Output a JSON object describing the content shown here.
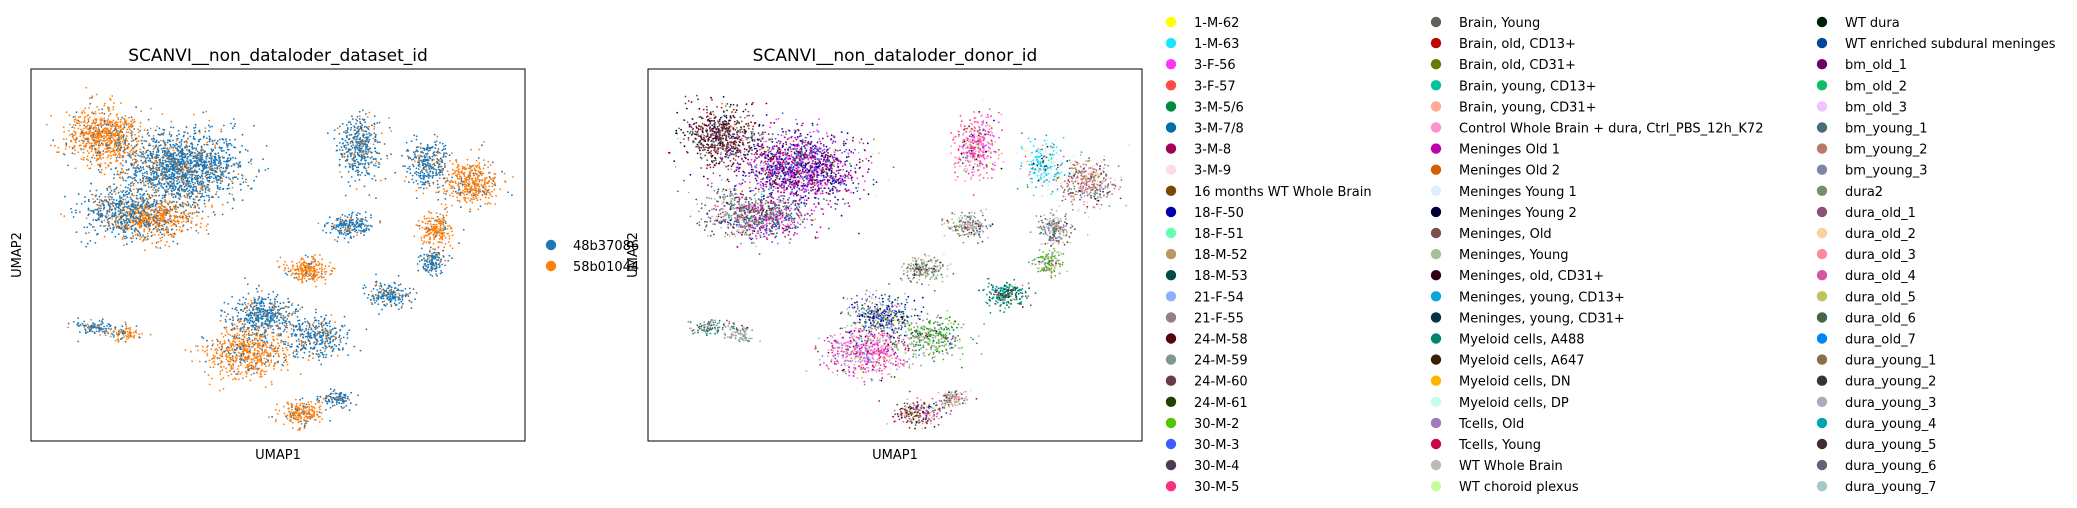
{
  "colors": {
    "series_a": "#1f77b4",
    "series_b": "#ff7f0e"
  },
  "chart_data": [
    {
      "type": "scatter",
      "title": "SCANVI__non_dataloder_dataset_id",
      "xlabel": "UMAP1",
      "ylabel": "UMAP2",
      "grid": false,
      "ticks": false,
      "legend_placement": "right",
      "legend": [
        {
          "name": "48b37086",
          "color": "#1f77b4"
        },
        {
          "name": "58b01044",
          "color": "#ff7f0e"
        }
      ],
      "xlim": [
        0,
        100
      ],
      "ylim": [
        0,
        100
      ],
      "clusters": [
        {
          "x": 14,
          "y": 83,
          "sx": 7,
          "sy": 7,
          "n": 800,
          "series": 1
        },
        {
          "x": 30,
          "y": 74,
          "sx": 11,
          "sy": 9,
          "n": 1700,
          "series": 0
        },
        {
          "x": 24,
          "y": 60,
          "sx": 8,
          "sy": 5,
          "n": 600,
          "series": 1
        },
        {
          "x": 18,
          "y": 62,
          "sx": 8,
          "sy": 6,
          "n": 500,
          "series": 0
        },
        {
          "x": 56,
          "y": 46,
          "sx": 4,
          "sy": 3,
          "n": 260,
          "series": 1
        },
        {
          "x": 67,
          "y": 80,
          "sx": 4,
          "sy": 8,
          "n": 420,
          "series": 0
        },
        {
          "x": 81,
          "y": 75,
          "sx": 4,
          "sy": 6,
          "n": 320,
          "series": 0
        },
        {
          "x": 90,
          "y": 70,
          "sx": 5,
          "sy": 6,
          "n": 420,
          "series": 1
        },
        {
          "x": 83,
          "y": 57,
          "sx": 3,
          "sy": 4,
          "n": 220,
          "series": 1
        },
        {
          "x": 82,
          "y": 48,
          "sx": 2.5,
          "sy": 3,
          "n": 150,
          "series": 0
        },
        {
          "x": 65,
          "y": 58,
          "sx": 4,
          "sy": 3,
          "n": 220,
          "series": 0
        },
        {
          "x": 73,
          "y": 39,
          "sx": 4,
          "sy": 3,
          "n": 200,
          "series": 0
        },
        {
          "x": 44,
          "y": 23,
          "sx": 8,
          "sy": 6,
          "n": 650,
          "series": 1
        },
        {
          "x": 47,
          "y": 33,
          "sx": 6,
          "sy": 5,
          "n": 450,
          "series": 0
        },
        {
          "x": 58,
          "y": 27,
          "sx": 6,
          "sy": 5,
          "n": 350,
          "series": 0
        },
        {
          "x": 55,
          "y": 6,
          "sx": 4,
          "sy": 3,
          "n": 220,
          "series": 1
        },
        {
          "x": 62,
          "y": 10,
          "sx": 3,
          "sy": 2,
          "n": 120,
          "series": 0
        },
        {
          "x": 12,
          "y": 30,
          "sx": 4,
          "sy": 2,
          "n": 110,
          "series": 0
        },
        {
          "x": 18,
          "y": 28,
          "sx": 3,
          "sy": 2,
          "n": 90,
          "series": 1
        }
      ]
    },
    {
      "type": "scatter",
      "title": "SCANVI__non_dataloder_donor_id",
      "xlabel": "UMAP1",
      "ylabel": "UMAP2",
      "grid": false,
      "ticks": false,
      "legend_placement": "right",
      "legend_columns": 3,
      "legend": [
        {
          "name": "1-M-62",
          "color": "#ffff00"
        },
        {
          "name": "1-M-63",
          "color": "#1ce6ff"
        },
        {
          "name": "3-F-56",
          "color": "#ff34ff"
        },
        {
          "name": "3-F-57",
          "color": "#ff4a46"
        },
        {
          "name": "3-M-5/6",
          "color": "#008941"
        },
        {
          "name": "3-M-7/8",
          "color": "#006fa6"
        },
        {
          "name": "3-M-8",
          "color": "#a30059"
        },
        {
          "name": "3-M-9",
          "color": "#ffdbe5"
        },
        {
          "name": "16 months WT Whole Brain",
          "color": "#7a4900"
        },
        {
          "name": "18-F-50",
          "color": "#0000a6"
        },
        {
          "name": "18-F-51",
          "color": "#63ffac"
        },
        {
          "name": "18-M-52",
          "color": "#b79762"
        },
        {
          "name": "18-M-53",
          "color": "#004d43"
        },
        {
          "name": "21-F-54",
          "color": "#8fb0ff"
        },
        {
          "name": "21-F-55",
          "color": "#997d87"
        },
        {
          "name": "24-M-58",
          "color": "#5a0007"
        },
        {
          "name": "24-M-59",
          "color": "#809693"
        },
        {
          "name": "24-M-60",
          "color": "#6a3a4c"
        },
        {
          "name": "24-M-61",
          "color": "#1b4400"
        },
        {
          "name": "30-M-2",
          "color": "#4fc601"
        },
        {
          "name": "30-M-3",
          "color": "#3b5dff"
        },
        {
          "name": "30-M-4",
          "color": "#4a3b53"
        },
        {
          "name": "30-M-5",
          "color": "#ff2f80"
        },
        {
          "name": "Brain, Young",
          "color": "#61615a"
        },
        {
          "name": "Brain, old, CD13+",
          "color": "#ba0900"
        },
        {
          "name": "Brain, old, CD31+",
          "color": "#6b7900"
        },
        {
          "name": "Brain, young, CD13+",
          "color": "#00c2a0"
        },
        {
          "name": "Brain, young, CD31+",
          "color": "#ffaa92"
        },
        {
          "name": "Control Whole Brain + dura, Ctrl_PBS_12h_K72",
          "color": "#ff90c9"
        },
        {
          "name": "Meninges Old 1",
          "color": "#b903aa"
        },
        {
          "name": "Meninges Old 2",
          "color": "#d16100"
        },
        {
          "name": "Meninges Young 1",
          "color": "#ddefff"
        },
        {
          "name": "Meninges Young 2",
          "color": "#000035"
        },
        {
          "name": "Meninges, Old",
          "color": "#7b4f4b"
        },
        {
          "name": "Meninges, Young",
          "color": "#a1c299"
        },
        {
          "name": "Meninges, old, CD31+",
          "color": "#300018"
        },
        {
          "name": "Meninges, young, CD13+",
          "color": "#0aa6d8"
        },
        {
          "name": "Meninges, young, CD31+",
          "color": "#013349"
        },
        {
          "name": "Myeloid cells, A488",
          "color": "#00846f"
        },
        {
          "name": "Myeloid cells, A647",
          "color": "#372101"
        },
        {
          "name": "Myeloid cells, DN",
          "color": "#ffb500"
        },
        {
          "name": "Myeloid cells, DP",
          "color": "#c2ffed"
        },
        {
          "name": "Tcells, Old",
          "color": "#a079bf"
        },
        {
          "name": "Tcells, Young",
          "color": "#cc0744"
        },
        {
          "name": "WT Whole Brain",
          "color": "#c0b9b2"
        },
        {
          "name": "WT choroid plexus",
          "color": "#c2ff99"
        },
        {
          "name": "WT dura",
          "color": "#001e09"
        },
        {
          "name": "WT enriched subdural meninges",
          "color": "#00489c"
        },
        {
          "name": "bm_old_1",
          "color": "#6f0062"
        },
        {
          "name": "bm_old_2",
          "color": "#0cbd66"
        },
        {
          "name": "bm_old_3",
          "color": "#eec3ff"
        },
        {
          "name": "bm_young_1",
          "color": "#456d75"
        },
        {
          "name": "bm_young_2",
          "color": "#b77b68"
        },
        {
          "name": "bm_young_3",
          "color": "#7a87a1"
        },
        {
          "name": "dura2",
          "color": "#788d66"
        },
        {
          "name": "dura_old_1",
          "color": "#885578"
        },
        {
          "name": "dura_old_2",
          "color": "#fad09f"
        },
        {
          "name": "dura_old_3",
          "color": "#ff8a9a"
        },
        {
          "name": "dura_old_4",
          "color": "#d157a0"
        },
        {
          "name": "dura_old_5",
          "color": "#bec459"
        },
        {
          "name": "dura_old_6",
          "color": "#456648"
        },
        {
          "name": "dura_old_7",
          "color": "#0086ed"
        },
        {
          "name": "dura_young_1",
          "color": "#886f4c"
        },
        {
          "name": "dura_young_2",
          "color": "#34362d"
        },
        {
          "name": "dura_young_3",
          "color": "#b4a8bd"
        },
        {
          "name": "dura_young_4",
          "color": "#00a6aa"
        },
        {
          "name": "dura_young_5",
          "color": "#452c2c"
        },
        {
          "name": "dura_young_6",
          "color": "#636375"
        },
        {
          "name": "dura_young_7",
          "color": "#a3c8c9"
        }
      ],
      "xlim": [
        0,
        100
      ],
      "ylim": [
        0,
        100
      ],
      "clusters": [
        {
          "x": 14,
          "y": 83,
          "sx": 7,
          "sy": 7,
          "n": 700,
          "palette": [
            23,
            24,
            15,
            17,
            21,
            32
          ]
        },
        {
          "x": 30,
          "y": 74,
          "sx": 11,
          "sy": 9,
          "n": 1600,
          "palette": [
            2,
            29,
            6,
            20,
            9,
            48
          ]
        },
        {
          "x": 24,
          "y": 60,
          "sx": 8,
          "sy": 5,
          "n": 500,
          "palette": [
            29,
            2,
            23,
            5
          ]
        },
        {
          "x": 18,
          "y": 62,
          "sx": 8,
          "sy": 6,
          "n": 400,
          "palette": [
            23,
            16,
            44,
            17
          ]
        },
        {
          "x": 56,
          "y": 46,
          "sx": 4,
          "sy": 3,
          "n": 200,
          "palette": [
            34,
            54,
            44,
            23
          ]
        },
        {
          "x": 67,
          "y": 80,
          "sx": 4,
          "sy": 8,
          "n": 380,
          "palette": [
            22,
            2,
            28,
            57
          ]
        },
        {
          "x": 81,
          "y": 75,
          "sx": 4,
          "sy": 6,
          "n": 300,
          "palette": [
            1,
            36,
            31,
            41
          ]
        },
        {
          "x": 90,
          "y": 70,
          "sx": 5,
          "sy": 6,
          "n": 380,
          "palette": [
            52,
            53,
            33,
            56,
            57
          ]
        },
        {
          "x": 83,
          "y": 57,
          "sx": 3,
          "sy": 4,
          "n": 200,
          "palette": [
            23,
            16,
            44
          ]
        },
        {
          "x": 82,
          "y": 48,
          "sx": 2.5,
          "sy": 3,
          "n": 140,
          "palette": [
            34,
            54,
            19
          ]
        },
        {
          "x": 65,
          "y": 58,
          "sx": 4,
          "sy": 3,
          "n": 200,
          "palette": [
            16,
            23,
            44
          ]
        },
        {
          "x": 73,
          "y": 39,
          "sx": 4,
          "sy": 3,
          "n": 220,
          "palette": [
            38,
            65,
            4,
            12
          ]
        },
        {
          "x": 44,
          "y": 23,
          "sx": 8,
          "sy": 6,
          "n": 650,
          "palette": [
            28,
            2,
            57,
            13,
            29,
            22
          ]
        },
        {
          "x": 47,
          "y": 33,
          "sx": 6,
          "sy": 5,
          "n": 420,
          "palette": [
            20,
            9,
            12,
            54,
            34
          ]
        },
        {
          "x": 58,
          "y": 27,
          "sx": 6,
          "sy": 5,
          "n": 330,
          "palette": [
            19,
            4,
            34,
            16
          ]
        },
        {
          "x": 55,
          "y": 6,
          "sx": 4,
          "sy": 3,
          "n": 220,
          "palette": [
            8,
            39,
            2,
            28,
            33
          ]
        },
        {
          "x": 62,
          "y": 10,
          "sx": 3,
          "sy": 2,
          "n": 120,
          "palette": [
            44,
            57,
            23
          ]
        },
        {
          "x": 12,
          "y": 30,
          "sx": 4,
          "sy": 2,
          "n": 100,
          "palette": [
            16,
            23,
            38
          ]
        },
        {
          "x": 18,
          "y": 28,
          "sx": 3,
          "sy": 2,
          "n": 80,
          "palette": [
            16,
            44
          ]
        }
      ]
    }
  ]
}
